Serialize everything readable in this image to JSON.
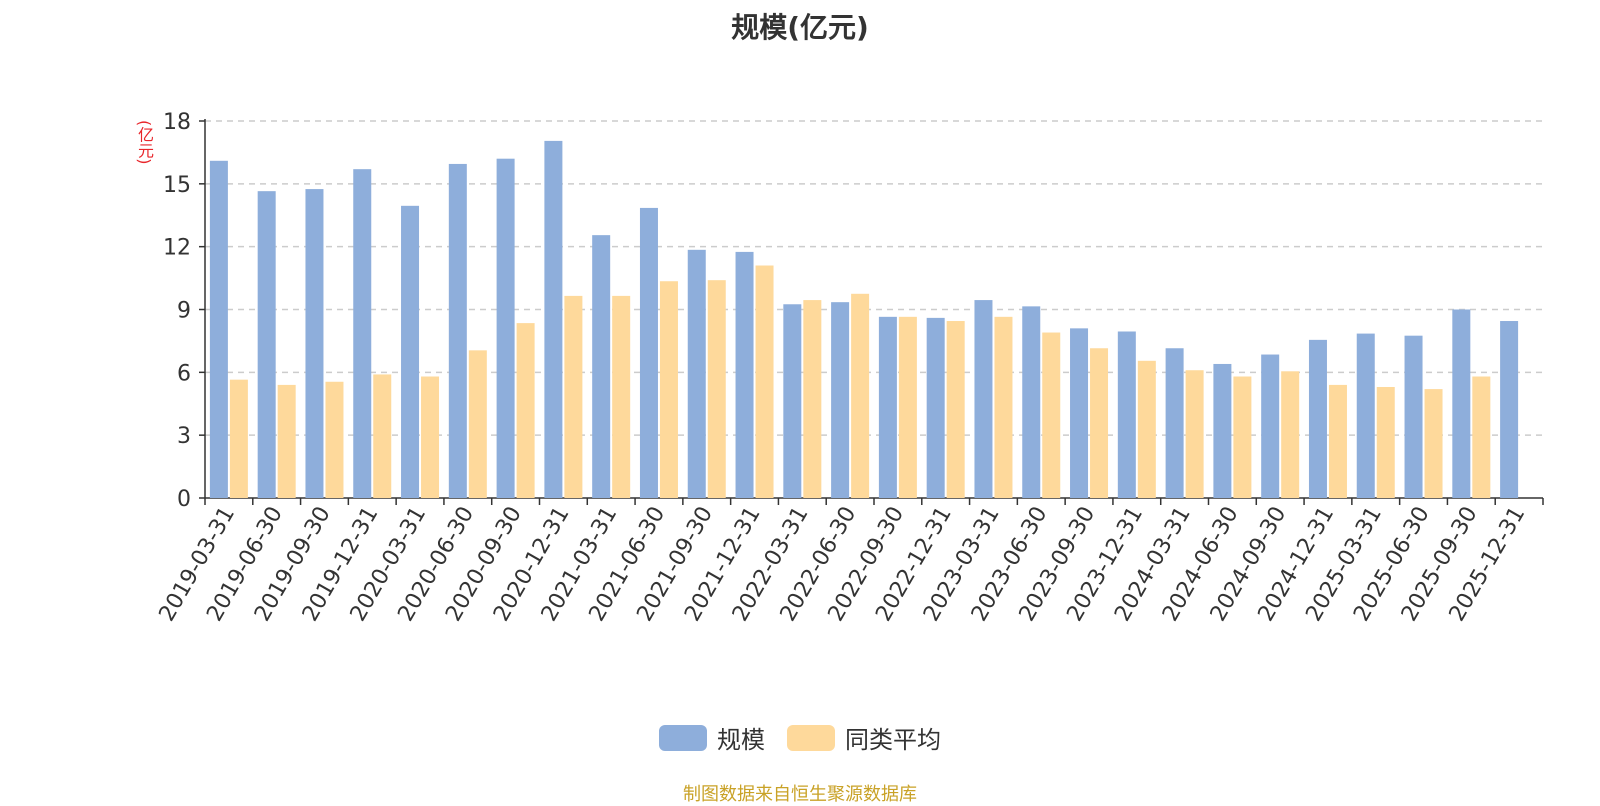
{
  "title": "规模(亿元)",
  "source_note": "制图数据来自恒生聚源数据库",
  "colors": {
    "scale": "#8eaedb",
    "average": "#fed99b",
    "axis": "#333333",
    "grid": "#cccccc",
    "unit": "#e8262b"
  },
  "chart_data": {
    "type": "bar",
    "title": "规模(亿元)",
    "ylabel": "(亿元)",
    "xlabel": "",
    "ylim": [
      0,
      18
    ],
    "yticks": [
      0,
      3,
      6,
      9,
      12,
      15,
      18
    ],
    "grid": true,
    "legend_position": "bottom",
    "categories": [
      "2019-03-31",
      "2019-06-30",
      "2019-09-30",
      "2019-12-31",
      "2020-03-31",
      "2020-06-30",
      "2020-09-30",
      "2020-12-31",
      "2021-03-31",
      "2021-06-30",
      "2021-09-30",
      "2021-12-31",
      "2022-03-31",
      "2022-06-30",
      "2022-09-30",
      "2022-12-31",
      "2023-03-31",
      "2023-06-30",
      "2023-09-30",
      "2023-12-31",
      "2024-03-31",
      "2024-06-30",
      "2024-09-30",
      "2024-12-31",
      "2025-03-31",
      "2025-06-30",
      "2025-09-30",
      "2025-12-31"
    ],
    "series": [
      {
        "name": "规模",
        "color": "#8eaedb",
        "values": [
          16.1,
          14.65,
          14.75,
          15.7,
          13.95,
          15.95,
          16.2,
          17.05,
          12.55,
          13.85,
          11.85,
          11.75,
          9.25,
          9.35,
          8.65,
          8.6,
          9.45,
          9.15,
          8.1,
          7.95,
          7.15,
          6.4,
          6.85,
          7.55,
          7.85,
          7.75,
          9.0,
          8.45
        ]
      },
      {
        "name": "同类平均",
        "color": "#fed99b",
        "values": [
          5.65,
          5.4,
          5.55,
          5.9,
          5.8,
          7.05,
          8.35,
          9.65,
          9.65,
          10.35,
          10.4,
          11.1,
          9.45,
          9.75,
          8.65,
          8.45,
          8.65,
          7.9,
          7.15,
          6.55,
          6.1,
          5.8,
          6.05,
          5.4,
          5.3,
          5.2,
          5.8,
          null
        ]
      }
    ]
  }
}
